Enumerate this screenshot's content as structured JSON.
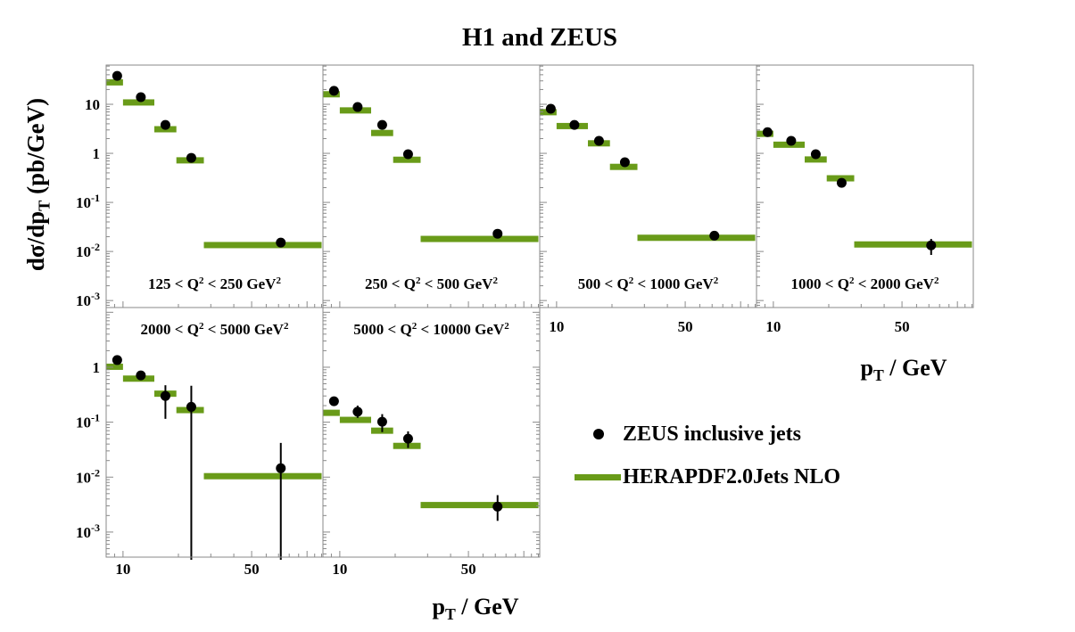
{
  "title": "H1 and ZEUS",
  "y_axis": {
    "label_prefix": "dσ/dp",
    "label_sub": "T",
    "label_suffix": " (pb/GeV)"
  },
  "x_axis": {
    "label_prefix": "p",
    "label_sub": "T",
    "label_suffix": " / GeV"
  },
  "legend": [
    {
      "marker": "dot",
      "label": "ZEUS inclusive jets"
    },
    {
      "marker": "band",
      "label": "HERAPDF2.0Jets NLO"
    }
  ],
  "colors": {
    "band": "#699b19",
    "marker": "#000000",
    "frame": "#8a8a8a"
  },
  "chart_data": {
    "type": "scatter+band",
    "title": "H1 and ZEUS",
    "xlabel": "pT / GeV",
    "ylabel": "dsigma/dpT (pb/GeV)",
    "x_scale": "log",
    "y_scale": "log",
    "xlim": [
      8.1,
      122
    ],
    "x_ticks": [
      9,
      10,
      20,
      30,
      40,
      50,
      60,
      70,
      80,
      90,
      100,
      110,
      120
    ],
    "x_ticks_labeled": [
      10,
      50
    ],
    "rows": [
      {
        "ylim": [
          0.00072,
          63
        ],
        "y_ticks": [
          {
            "v": 10,
            "base": "10",
            "sup": ""
          },
          {
            "v": 1,
            "base": "1",
            "sup": ""
          },
          {
            "v": 0.1,
            "base": "10",
            "sup": "-1"
          },
          {
            "v": 0.01,
            "base": "10",
            "sup": "-2"
          },
          {
            "v": 0.001,
            "base": "10",
            "sup": "-3"
          }
        ]
      },
      {
        "ylim": [
          0.00035,
          12.2
        ],
        "y_ticks": [
          {
            "v": 1,
            "base": "1",
            "sup": ""
          },
          {
            "v": 0.1,
            "base": "10",
            "sup": "-1"
          },
          {
            "v": 0.01,
            "base": "10",
            "sup": "-2"
          },
          {
            "v": 0.001,
            "base": "10",
            "sup": "-3"
          }
        ]
      }
    ],
    "panels": [
      {
        "label": "125 < Q² < 250 GeV²",
        "row": 0,
        "col": 0,
        "x_labels": false,
        "mirror_right": false,
        "bins": [
          [
            7,
            10
          ],
          [
            10,
            14.8
          ],
          [
            14.8,
            19.5
          ],
          [
            19.5,
            27.5
          ],
          [
            27.5,
            120
          ]
        ],
        "points": {
          "pt": [
            9.3,
            12.5,
            17,
            23.5,
            72
          ],
          "y": [
            38,
            14,
            3.8,
            0.81,
            0.0152
          ],
          "yerr_lo": null,
          "yerr_hi": null
        },
        "band_y": [
          28,
          10.9,
          3.1,
          0.72,
          0.0135
        ]
      },
      {
        "label": "250 < Q² < 500 GeV²",
        "row": 0,
        "col": 1,
        "x_labels": false,
        "mirror_right": false,
        "bins": [
          [
            7,
            10
          ],
          [
            10,
            14.8
          ],
          [
            14.8,
            19.5
          ],
          [
            19.5,
            27.5
          ],
          [
            27.5,
            120
          ]
        ],
        "points": {
          "pt": [
            9.3,
            12.5,
            17,
            23.5,
            72
          ],
          "y": [
            18.8,
            8.8,
            3.8,
            0.96,
            0.023
          ],
          "yerr_lo": null,
          "yerr_hi": null
        },
        "band_y": [
          16,
          7.5,
          2.6,
          0.74,
          0.018
        ]
      },
      {
        "label": "500 < Q² < 1000 GeV²",
        "row": 0,
        "col": 2,
        "x_labels": true,
        "mirror_right": false,
        "bins": [
          [
            7,
            10
          ],
          [
            10,
            14.8
          ],
          [
            14.8,
            19.5
          ],
          [
            19.5,
            27.5
          ],
          [
            27.5,
            120
          ]
        ],
        "points": {
          "pt": [
            9.3,
            12.5,
            17,
            23.5,
            72
          ],
          "y": [
            8.1,
            3.8,
            1.8,
            0.66,
            0.021
          ],
          "yerr_lo": null,
          "yerr_hi": null
        },
        "band_y": [
          6.9,
          3.6,
          1.6,
          0.53,
          0.019
        ]
      },
      {
        "label": "1000 < Q² < 2000 GeV²",
        "row": 0,
        "col": 3,
        "x_labels": true,
        "mirror_right": false,
        "bins": [
          [
            7,
            10
          ],
          [
            10,
            14.8
          ],
          [
            14.8,
            19.5
          ],
          [
            19.5,
            27.5
          ],
          [
            27.5,
            120
          ]
        ],
        "points": {
          "pt": [
            9.3,
            12.5,
            17,
            23.5,
            72
          ],
          "y": [
            2.7,
            1.8,
            0.96,
            0.25,
            0.0133
          ],
          "yerr_lo": [
            null,
            null,
            null,
            null,
            0.0085
          ],
          "yerr_hi": [
            null,
            null,
            null,
            null,
            0.018
          ]
        },
        "band_y": [
          2.5,
          1.5,
          0.75,
          0.31,
          0.0139
        ]
      },
      {
        "label": "2000 < Q² < 5000 GeV²",
        "row": 1,
        "col": 0,
        "x_labels": true,
        "mirror_right": false,
        "bins": [
          [
            7,
            10
          ],
          [
            10,
            14.8
          ],
          [
            14.8,
            19.5
          ],
          [
            19.5,
            27.5
          ],
          [
            27.5,
            120
          ]
        ],
        "points": {
          "pt": [
            9.3,
            12.5,
            17,
            23.5,
            72
          ],
          "y": [
            1.35,
            0.71,
            0.3,
            0.19,
            0.0145
          ],
          "yerr_lo": [
            null,
            null,
            0.115,
            0,
            0
          ],
          "yerr_hi": [
            null,
            null,
            0.47,
            0.46,
            0.042
          ]
        },
        "band_y": [
          1.02,
          0.62,
          0.33,
          0.166,
          0.0104
        ]
      },
      {
        "label": "5000 < Q² < 10000 GeV²",
        "row": 1,
        "col": 1,
        "x_labels": true,
        "mirror_right": true,
        "bins": [
          [
            7,
            10
          ],
          [
            10,
            14.8
          ],
          [
            14.8,
            19.5
          ],
          [
            19.5,
            27.5
          ],
          [
            27.5,
            120
          ]
        ],
        "points": {
          "pt": [
            9.3,
            12.5,
            17,
            23.5,
            72
          ],
          "y": [
            0.24,
            0.155,
            0.102,
            0.05,
            0.0029
          ],
          "yerr_lo": [
            0.2,
            0.12,
            0.066,
            0.034,
            0.0016
          ],
          "yerr_hi": [
            0.29,
            0.2,
            0.14,
            0.068,
            0.0047
          ]
        },
        "band_y": [
          0.148,
          0.11,
          0.07,
          0.037,
          0.0031
        ]
      }
    ]
  }
}
